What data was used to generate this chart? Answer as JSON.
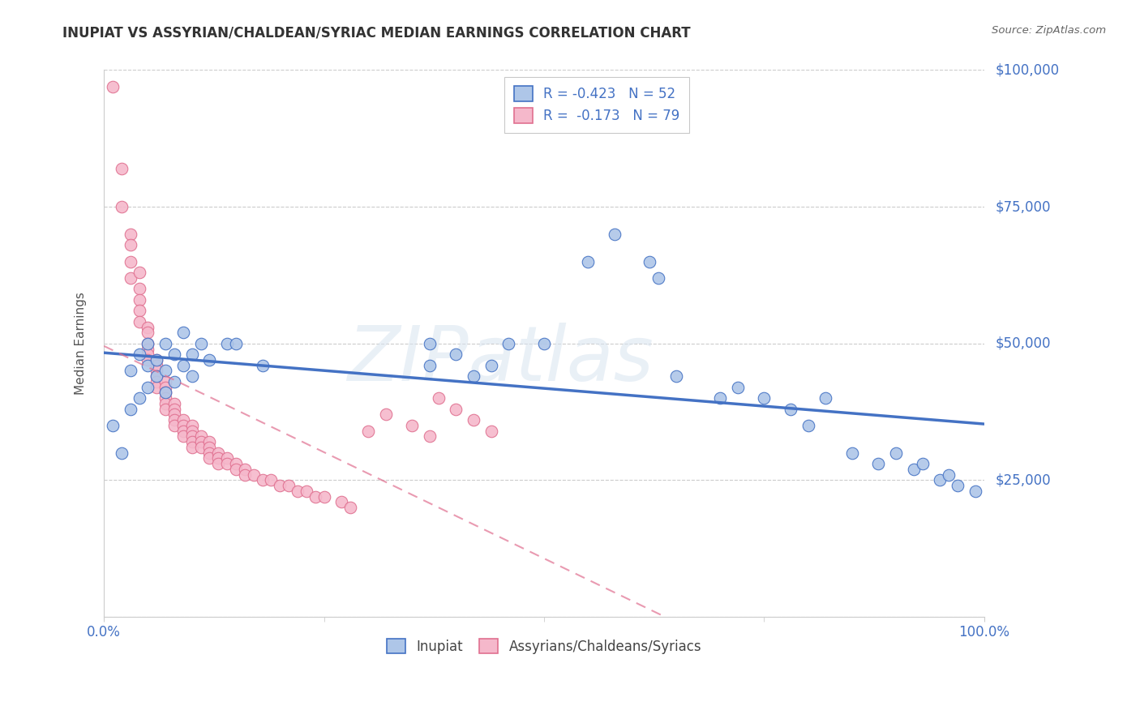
{
  "title": "INUPIAT VS ASSYRIAN/CHALDEAN/SYRIAC MEDIAN EARNINGS CORRELATION CHART",
  "source_text": "Source: ZipAtlas.com",
  "ylabel": "Median Earnings",
  "watermark": "ZIPatlas",
  "xmin": 0.0,
  "xmax": 1.0,
  "ymin": 0,
  "ymax": 100000,
  "yticks": [
    0,
    25000,
    50000,
    75000,
    100000
  ],
  "ytick_labels": [
    "",
    "$25,000",
    "$50,000",
    "$75,000",
    "$100,000"
  ],
  "xtick_labels": [
    "0.0%",
    "100.0%"
  ],
  "legend_r1": "R = -0.423",
  "legend_n1": "N = 52",
  "legend_r2": "R =  -0.173",
  "legend_n2": "N = 79",
  "label_inupiat": "Inupiat",
  "label_assyrian": "Assyrians/Chaldeans/Syriacs",
  "color_inupiat_fill": "#aec6e8",
  "color_inupiat_edge": "#4472c4",
  "color_inupiat_line": "#4472c4",
  "color_assyrian_fill": "#f5b8cb",
  "color_assyrian_edge": "#e07090",
  "color_assyrian_line": "#e07090",
  "background_color": "#ffffff",
  "grid_color": "#cccccc",
  "title_color": "#333333",
  "axis_tick_color": "#4472c4",
  "inupiat_x": [
    0.01,
    0.02,
    0.03,
    0.03,
    0.04,
    0.04,
    0.05,
    0.05,
    0.05,
    0.06,
    0.06,
    0.07,
    0.07,
    0.07,
    0.08,
    0.08,
    0.09,
    0.09,
    0.1,
    0.1,
    0.11,
    0.12,
    0.14,
    0.15,
    0.18,
    0.37,
    0.37,
    0.4,
    0.42,
    0.44,
    0.46,
    0.5,
    0.55,
    0.58,
    0.62,
    0.63,
    0.65,
    0.7,
    0.72,
    0.75,
    0.78,
    0.8,
    0.82,
    0.85,
    0.88,
    0.9,
    0.92,
    0.93,
    0.95,
    0.96,
    0.97,
    0.99
  ],
  "inupiat_y": [
    35000,
    30000,
    45000,
    38000,
    48000,
    40000,
    46000,
    50000,
    42000,
    44000,
    47000,
    41000,
    45000,
    50000,
    43000,
    48000,
    46000,
    52000,
    44000,
    48000,
    50000,
    47000,
    50000,
    50000,
    46000,
    50000,
    46000,
    48000,
    44000,
    46000,
    50000,
    50000,
    65000,
    70000,
    65000,
    62000,
    44000,
    40000,
    42000,
    40000,
    38000,
    35000,
    40000,
    30000,
    28000,
    30000,
    27000,
    28000,
    25000,
    26000,
    24000,
    23000
  ],
  "assyrian_x": [
    0.01,
    0.02,
    0.02,
    0.03,
    0.03,
    0.03,
    0.03,
    0.04,
    0.04,
    0.04,
    0.04,
    0.04,
    0.05,
    0.05,
    0.05,
    0.05,
    0.05,
    0.05,
    0.06,
    0.06,
    0.06,
    0.06,
    0.06,
    0.06,
    0.07,
    0.07,
    0.07,
    0.07,
    0.07,
    0.07,
    0.08,
    0.08,
    0.08,
    0.08,
    0.08,
    0.09,
    0.09,
    0.09,
    0.09,
    0.1,
    0.1,
    0.1,
    0.1,
    0.1,
    0.11,
    0.11,
    0.11,
    0.12,
    0.12,
    0.12,
    0.12,
    0.13,
    0.13,
    0.13,
    0.14,
    0.14,
    0.15,
    0.15,
    0.16,
    0.16,
    0.17,
    0.18,
    0.19,
    0.2,
    0.21,
    0.22,
    0.23,
    0.24,
    0.25,
    0.27,
    0.28,
    0.3,
    0.32,
    0.35,
    0.37,
    0.38,
    0.4,
    0.42,
    0.44
  ],
  "assyrian_y": [
    97000,
    82000,
    75000,
    70000,
    68000,
    65000,
    62000,
    63000,
    60000,
    58000,
    56000,
    54000,
    53000,
    52000,
    50000,
    49000,
    48000,
    47000,
    47000,
    46000,
    45000,
    44000,
    43000,
    42000,
    43000,
    42000,
    41000,
    40000,
    39000,
    38000,
    39000,
    38000,
    37000,
    36000,
    35000,
    36000,
    35000,
    34000,
    33000,
    35000,
    34000,
    33000,
    32000,
    31000,
    33000,
    32000,
    31000,
    32000,
    31000,
    30000,
    29000,
    30000,
    29000,
    28000,
    29000,
    28000,
    28000,
    27000,
    27000,
    26000,
    26000,
    25000,
    25000,
    24000,
    24000,
    23000,
    23000,
    22000,
    22000,
    21000,
    20000,
    34000,
    37000,
    35000,
    33000,
    40000,
    38000,
    36000,
    34000
  ]
}
